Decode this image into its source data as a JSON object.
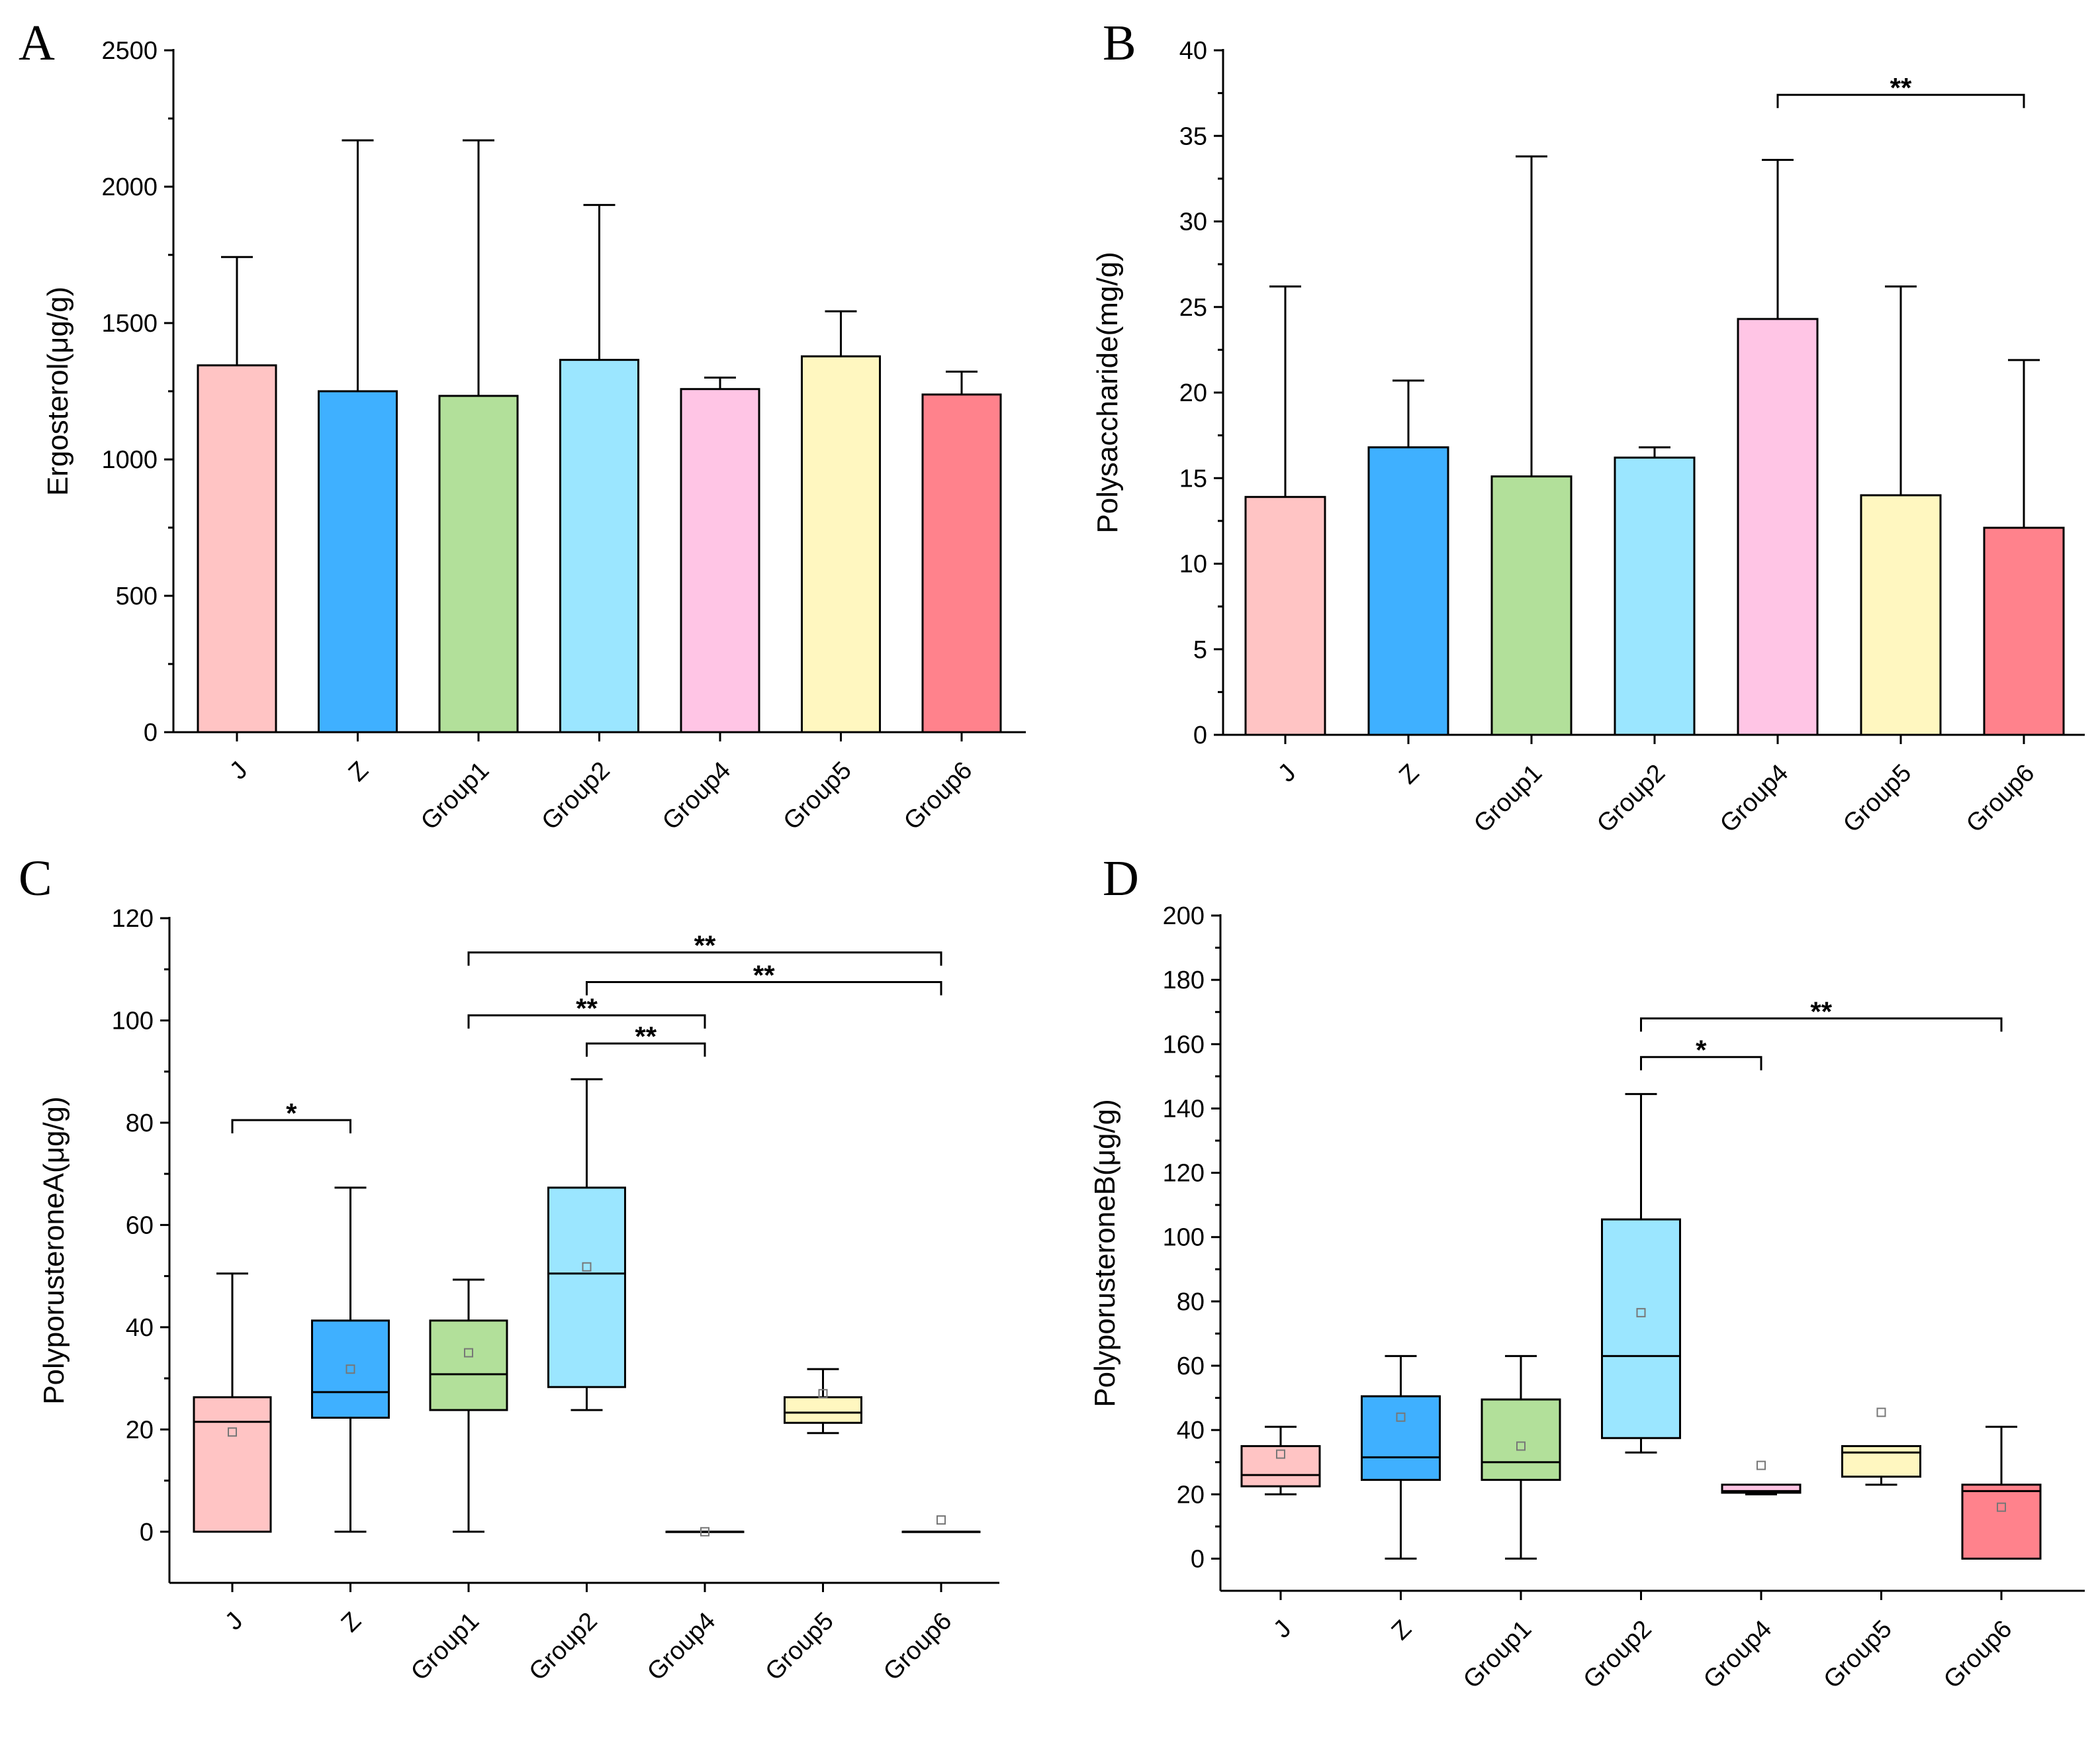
{
  "chart_data": [
    {
      "panel": "A",
      "type": "bar",
      "ylabel": "Ergosterol(μg/g)",
      "ylim": [
        0,
        2500
      ],
      "yticks": [
        0,
        500,
        1000,
        1500,
        2000,
        2500
      ],
      "categories": [
        "J",
        "Z",
        "Group1",
        "Group2",
        "Group4",
        "Group5",
        "Group6"
      ],
      "colors": [
        "#ffc4c4",
        "#3fb0ff",
        "#b2e09a",
        "#9be6ff",
        "#ffc5e5",
        "#fff7c0",
        "#ff828c"
      ],
      "values": [
        1345,
        1250,
        1233,
        1365,
        1258,
        1378,
        1238
      ],
      "error_upper": [
        1742,
        2170,
        2170,
        1933,
        1300,
        1543,
        1322
      ],
      "significance": []
    },
    {
      "panel": "B",
      "type": "bar",
      "ylabel": "Polysaccharide(mg/g)",
      "ylim": [
        0,
        40
      ],
      "yticks": [
        0,
        5,
        10,
        15,
        20,
        25,
        30,
        35,
        40
      ],
      "categories": [
        "J",
        "Z",
        "Group1",
        "Group2",
        "Group4",
        "Group5",
        "Group6"
      ],
      "colors": [
        "#ffc4c4",
        "#3fb0ff",
        "#b2e09a",
        "#9be6ff",
        "#ffc5e5",
        "#fff7c0",
        "#ff828c"
      ],
      "values": [
        13.9,
        16.8,
        15.1,
        16.2,
        24.3,
        14.0,
        12.1
      ],
      "error_upper": [
        26.2,
        20.7,
        33.8,
        16.8,
        33.6,
        26.2,
        21.9
      ],
      "significance": [
        {
          "from": 4,
          "to": 6,
          "y": 37.4,
          "label": "**"
        }
      ]
    },
    {
      "panel": "C",
      "type": "box",
      "ylabel": "PolyporusteroneA(μg/g)",
      "ylim": [
        -10,
        120
      ],
      "yticks": [
        0,
        20,
        40,
        60,
        80,
        100,
        120
      ],
      "categories": [
        "J",
        "Z",
        "Group1",
        "Group2",
        "Group4",
        "Group5",
        "Group6"
      ],
      "colors": [
        "#ffc4c4",
        "#3fb0ff",
        "#b2e09a",
        "#9be6ff",
        "#ffc5e5",
        "#fff7c0",
        "#ff828c"
      ],
      "boxes": [
        {
          "min": 0,
          "q1": 0,
          "median": 21.5,
          "q3": 26.3,
          "max": 50.5,
          "mean": 19.5
        },
        {
          "min": 0,
          "q1": 22.3,
          "median": 27.3,
          "q3": 41.3,
          "max": 67.3,
          "mean": 31.8
        },
        {
          "min": 0,
          "q1": 23.8,
          "median": 30.8,
          "q3": 41.3,
          "max": 49.3,
          "mean": 35.0
        },
        {
          "min": 23.8,
          "q1": 28.3,
          "median": 50.5,
          "q3": 67.3,
          "max": 88.5,
          "mean": 51.8
        },
        {
          "min": 0,
          "q1": 0,
          "median": 0,
          "q3": 0,
          "max": 0,
          "mean": 0
        },
        {
          "min": 19.3,
          "q1": 21.3,
          "median": 23.3,
          "q3": 26.3,
          "max": 31.8,
          "mean": 27.0
        },
        {
          "min": 0,
          "q1": 0,
          "median": 0,
          "q3": 0,
          "max": 0,
          "mean": 2.3
        }
      ],
      "significance": [
        {
          "from": 0,
          "to": 1,
          "y": 80.5,
          "label": "*"
        },
        {
          "from": 2,
          "to": 6,
          "y": 113.3,
          "label": "**"
        },
        {
          "from": 3,
          "to": 6,
          "y": 107.5,
          "label": "**"
        },
        {
          "from": 2,
          "to": 4,
          "y": 101.0,
          "label": "**"
        },
        {
          "from": 3,
          "to": 4,
          "y": 95.5,
          "label": "**"
        }
      ]
    },
    {
      "panel": "D",
      "type": "box",
      "ylabel": "PolyporusteroneB(μg/g)",
      "ylim": [
        -10,
        200
      ],
      "yticks": [
        0,
        20,
        40,
        60,
        80,
        100,
        120,
        140,
        160,
        180,
        200
      ],
      "categories": [
        "J",
        "Z",
        "Group1",
        "Group2",
        "Group4",
        "Group5",
        "Group6"
      ],
      "colors": [
        "#ffc4c4",
        "#3fb0ff",
        "#b2e09a",
        "#9be6ff",
        "#ffc5e5",
        "#fff7c0",
        "#ff828c"
      ],
      "boxes": [
        {
          "min": 20,
          "q1": 22.5,
          "median": 26,
          "q3": 35,
          "max": 41,
          "mean": 32.5
        },
        {
          "min": 0,
          "q1": 24.5,
          "median": 31.5,
          "q3": 50.5,
          "max": 63,
          "mean": 44
        },
        {
          "min": 0,
          "q1": 24.5,
          "median": 30,
          "q3": 49.5,
          "max": 63,
          "mean": 35
        },
        {
          "min": 33,
          "q1": 37.5,
          "median": 63,
          "q3": 105.5,
          "max": 144.5,
          "mean": 76.5
        },
        {
          "min": 20,
          "q1": 20.5,
          "median": 21,
          "q3": 23,
          "max": 23,
          "mean": 29
        },
        {
          "min": 23,
          "q1": 25.5,
          "median": 33,
          "q3": 35,
          "max": 35,
          "mean": 45.5
        },
        {
          "min": 0,
          "q1": 0,
          "median": 21,
          "q3": 23,
          "max": 41,
          "mean": 16
        }
      ],
      "significance": [
        {
          "from": 3,
          "to": 4,
          "y": 156,
          "label": "*"
        },
        {
          "from": 3,
          "to": 6,
          "y": 168,
          "label": "**"
        }
      ]
    }
  ]
}
